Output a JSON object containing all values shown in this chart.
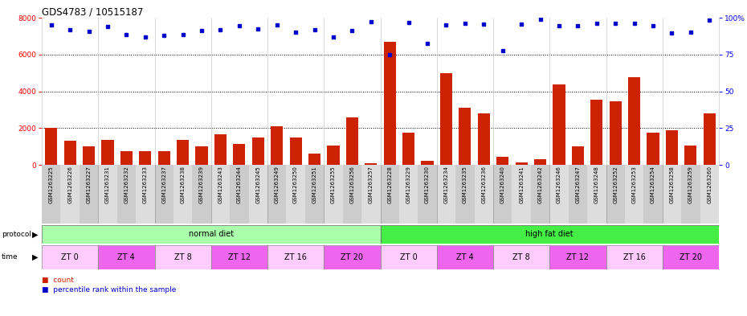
{
  "title": "GDS4783 / 10515187",
  "samples": [
    "GSM1263225",
    "GSM1263226",
    "GSM1263227",
    "GSM1263231",
    "GSM1263232",
    "GSM1263233",
    "GSM1263237",
    "GSM1263238",
    "GSM1263239",
    "GSM1263243",
    "GSM1263244",
    "GSM1263245",
    "GSM1263249",
    "GSM1263250",
    "GSM1263251",
    "GSM1263255",
    "GSM1263256",
    "GSM1263257",
    "GSM1263228",
    "GSM1263229",
    "GSM1263230",
    "GSM1263234",
    "GSM1263235",
    "GSM1263236",
    "GSM1263240",
    "GSM1263241",
    "GSM1263242",
    "GSM1263246",
    "GSM1263247",
    "GSM1263248",
    "GSM1263252",
    "GSM1263253",
    "GSM1263254",
    "GSM1263258",
    "GSM1263259",
    "GSM1263260"
  ],
  "counts": [
    2000,
    1300,
    1000,
    1350,
    750,
    750,
    750,
    1350,
    1000,
    1650,
    1150,
    1500,
    2100,
    1500,
    600,
    1050,
    2600,
    100,
    6700,
    1750,
    200,
    5000,
    3100,
    2800,
    450,
    150,
    300,
    4350,
    1000,
    3550,
    3450,
    4750,
    1750,
    1900,
    1050,
    2800
  ],
  "percentiles": [
    7600,
    7350,
    7250,
    7500,
    7100,
    6950,
    7050,
    7100,
    7300,
    7350,
    7550,
    7400,
    7600,
    7200,
    7350,
    6950,
    7300,
    7800,
    6000,
    7750,
    6600,
    7600,
    7700,
    7650,
    6200,
    7650,
    7900,
    7550,
    7550,
    7700,
    7700,
    7700,
    7550,
    7150,
    7200,
    7850
  ],
  "protocol_groups": [
    {
      "label": "normal diet",
      "start": 0,
      "end": 18,
      "color": "#aaffaa"
    },
    {
      "label": "high fat diet",
      "start": 18,
      "end": 36,
      "color": "#44ee44"
    }
  ],
  "time_groups": [
    {
      "label": "ZT 0",
      "start": 0,
      "end": 3,
      "color": "#ffccff"
    },
    {
      "label": "ZT 4",
      "start": 3,
      "end": 6,
      "color": "#ee66ee"
    },
    {
      "label": "ZT 8",
      "start": 6,
      "end": 9,
      "color": "#ffccff"
    },
    {
      "label": "ZT 12",
      "start": 9,
      "end": 12,
      "color": "#ee66ee"
    },
    {
      "label": "ZT 16",
      "start": 12,
      "end": 15,
      "color": "#ffccff"
    },
    {
      "label": "ZT 20",
      "start": 15,
      "end": 18,
      "color": "#ee66ee"
    },
    {
      "label": "ZT 0",
      "start": 18,
      "end": 21,
      "color": "#ffccff"
    },
    {
      "label": "ZT 4",
      "start": 21,
      "end": 24,
      "color": "#ee66ee"
    },
    {
      "label": "ZT 8",
      "start": 24,
      "end": 27,
      "color": "#ffccff"
    },
    {
      "label": "ZT 12",
      "start": 27,
      "end": 30,
      "color": "#ee66ee"
    },
    {
      "label": "ZT 16",
      "start": 30,
      "end": 33,
      "color": "#ffccff"
    },
    {
      "label": "ZT 20",
      "start": 33,
      "end": 36,
      "color": "#ee66ee"
    }
  ],
  "bar_color": "#cc2200",
  "dot_color": "#0000cc",
  "ylim_left": [
    0,
    8000
  ],
  "ylim_right": [
    0,
    100
  ],
  "yticks_left": [
    0,
    2000,
    4000,
    6000,
    8000
  ],
  "yticks_right": [
    0,
    25,
    50,
    75,
    100
  ],
  "background_color": "#ffffff"
}
